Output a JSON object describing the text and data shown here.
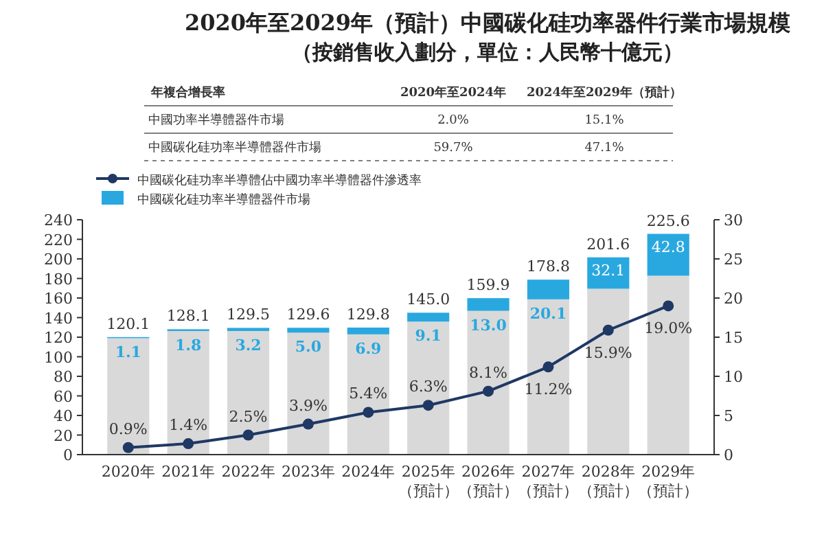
{
  "chart_data": {
    "type": "bar",
    "title": "2020年至2029年（預計）中國碳化硅功率器件行業市場規模",
    "subtitle": "（按銷售收入劃分，單位：人民幣十億元）",
    "annotations": [
      "年複合增長率",
      "2020年至2024年",
      "2024年至2029年（預計）",
      "中國功率半導體器件市場",
      "2.0%",
      "15.1%",
      "中國碳化硅功率半導體器件市場",
      "59.7%",
      "47.1%"
    ],
    "categories": [
      "2020年",
      "2021年",
      "2022年",
      "2023年",
      "2024年",
      "2025年（預計）",
      "2026年（預計）",
      "2027年（預計）",
      "2028年（預計）",
      "2029年（預計）"
    ],
    "stacked": true,
    "series": [
      {
        "name": "中國碳化硅功率半導體佔中國功率半導體器件滲透率",
        "type": "line",
        "axis": "y2",
        "color": "#1f3864",
        "marker": "circle",
        "values": [
          0.9,
          1.4,
          2.5,
          3.9,
          5.4,
          6.3,
          8.1,
          11.2,
          15.9,
          19.0
        ],
        "value_labels": [
          "0.9%",
          "1.4%",
          "2.5%",
          "3.9%",
          "5.4%",
          "6.3%",
          "8.1%",
          "11.2%",
          "15.9%",
          "19.0%"
        ]
      },
      {
        "color": "#d9d9d9",
        "values": [
          119.0,
          126.3,
          126.3,
          124.6,
          122.9,
          135.9,
          146.9,
          158.7,
          169.5,
          182.8
        ]
      },
      {
        "name": "中國碳化硅功率半導體器件市場",
        "color": "#29a8e0",
        "values": [
          1.1,
          1.8,
          3.2,
          5.0,
          6.9,
          9.1,
          13.0,
          20.1,
          32.1,
          42.8
        ],
        "value_labels": [
          "1.1",
          "1.8",
          "3.2",
          "5.0",
          "6.9",
          "9.1",
          "13.0",
          "20.1",
          "32.1",
          "42.8"
        ]
      }
    ],
    "totals": [
      "120.1",
      "128.1",
      "129.5",
      "129.6",
      "129.8",
      "145.0",
      "159.9",
      "178.8",
      "201.6",
      "225.6"
    ],
    "ylim": [
      0,
      240
    ],
    "yticks": [
      0,
      20,
      40,
      60,
      80,
      100,
      120,
      140,
      160,
      180,
      200,
      220,
      240
    ],
    "y2lim": [
      0,
      30
    ],
    "y2ticks": [
      0,
      5,
      10,
      15,
      20,
      25,
      30
    ],
    "legend": "top left",
    "grid": false
  }
}
